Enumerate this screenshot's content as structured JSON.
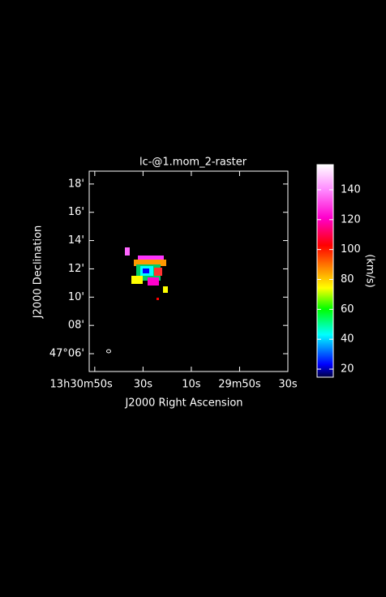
{
  "chart_data": {
    "type": "image",
    "title": "lc-@1.mom_2-raster",
    "x_label": "J2000 Right Ascension",
    "y_label": "J2000 Declination",
    "xlim": [
      1852.3,
      1770
    ],
    "xticks": [
      {
        "value": 1850,
        "label": "13h30m50s"
      },
      {
        "value": 1830,
        "label": "30s"
      },
      {
        "value": 1810,
        "label": "10s"
      },
      {
        "value": 1790,
        "label": "29m50s"
      },
      {
        "value": 1770,
        "label": "30s"
      }
    ],
    "ylim": [
      4.74,
      18.91
    ],
    "yticks": [
      {
        "value": 6,
        "label": "47°06'"
      },
      {
        "value": 8,
        "label": "08'"
      },
      {
        "value": 10,
        "label": "10'"
      },
      {
        "value": 12,
        "label": "12'"
      },
      {
        "value": 14,
        "label": "14'"
      },
      {
        "value": 16,
        "label": "16'"
      },
      {
        "value": 18,
        "label": "18'"
      }
    ],
    "colorbar": {
      "label": "(km/s)",
      "clim": [
        14.6,
        156.8
      ],
      "ticks": [
        20,
        40,
        60,
        80,
        100,
        120,
        140
      ]
    }
  }
}
